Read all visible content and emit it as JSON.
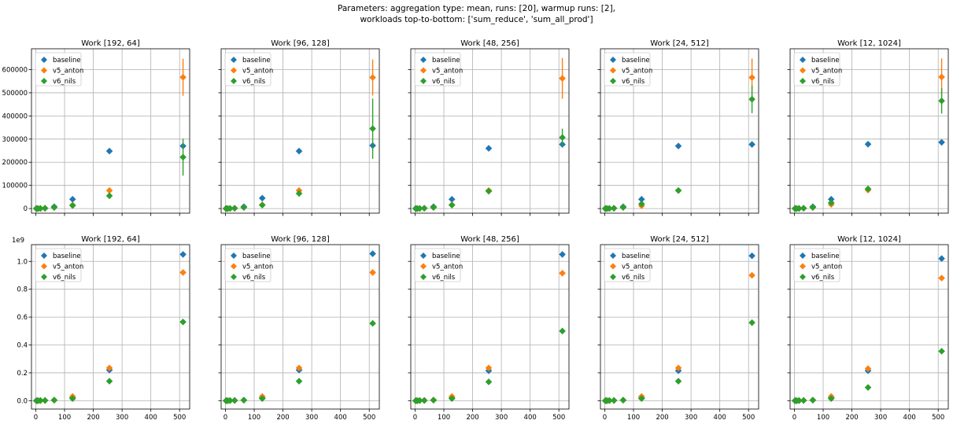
{
  "figure": {
    "suptitle_line1": "Parameters: aggregation type: mean, runs: [20], warmup runs: [2],",
    "suptitle_line2": "workloads top-to-bottom: ['sum_reduce', 'sum_all_prod']"
  },
  "colors": {
    "baseline": "#1f77b4",
    "v5_anton": "#ff7f0e",
    "v6_nils": "#2ca02c",
    "grid": "#b0b0b0"
  },
  "legend_location": "upper-left",
  "rows": [
    {
      "ylim": [
        -20000,
        690000
      ],
      "yticks": [
        0,
        100000,
        200000,
        300000,
        400000,
        500000,
        600000
      ],
      "ytick_labels": [
        "0",
        "100000",
        "200000",
        "300000",
        "400000",
        "500000",
        "600000"
      ],
      "offset_label": "",
      "show_ytick_labels": true,
      "show_xtick_labels": false
    },
    {
      "ylim": [
        -0.06,
        1.12
      ],
      "yticks": [
        0.0,
        0.2,
        0.4,
        0.6,
        0.8,
        1.0
      ],
      "ytick_labels": [
        "0.0",
        "0.2",
        "0.4",
        "0.6",
        "0.8",
        "1.0"
      ],
      "offset_label": "1e9",
      "show_ytick_labels": true,
      "show_xtick_labels": true
    }
  ],
  "xaxis": {
    "xlim": [
      -15,
      535
    ],
    "xticks": [
      0,
      100,
      200,
      300,
      400,
      500
    ],
    "xtick_labels": [
      "0",
      "100",
      "200",
      "300",
      "400",
      "500"
    ]
  },
  "chart_data": [
    {
      "type": "scatter",
      "title": "Work [192, 64]",
      "row": 0,
      "col": 0,
      "grid": true,
      "x": [
        2,
        4,
        8,
        16,
        32,
        64,
        128,
        256,
        512
      ],
      "series": [
        {
          "name": "baseline",
          "values": [
            0,
            0,
            0,
            500,
            1500,
            8000,
            40000,
            248000,
            270000
          ],
          "err": [
            0,
            0,
            0,
            0,
            0,
            0,
            0,
            0,
            0
          ]
        },
        {
          "name": "v5_anton",
          "values": [
            0,
            0,
            0,
            400,
            1200,
            5000,
            15000,
            78000,
            567000
          ],
          "err": [
            0,
            0,
            0,
            0,
            0,
            0,
            0,
            0,
            80000
          ]
        },
        {
          "name": "v6_nils",
          "values": [
            0,
            0,
            0,
            400,
            1200,
            5000,
            13000,
            55000,
            222000
          ],
          "err": [
            0,
            0,
            0,
            0,
            0,
            0,
            0,
            0,
            80000
          ]
        }
      ]
    },
    {
      "type": "scatter",
      "title": "Work [96, 128]",
      "row": 0,
      "col": 1,
      "grid": true,
      "x": [
        2,
        4,
        8,
        16,
        32,
        64,
        128,
        256,
        512
      ],
      "series": [
        {
          "name": "baseline",
          "values": [
            0,
            0,
            0,
            500,
            1500,
            8000,
            45000,
            248000,
            272000
          ],
          "err": [
            0,
            0,
            0,
            0,
            0,
            0,
            0,
            0,
            0
          ]
        },
        {
          "name": "v5_anton",
          "values": [
            0,
            0,
            0,
            400,
            1200,
            5000,
            16000,
            78000,
            566000
          ],
          "err": [
            0,
            0,
            0,
            0,
            0,
            0,
            0,
            0,
            78000
          ]
        },
        {
          "name": "v6_nils",
          "values": [
            0,
            0,
            0,
            400,
            1200,
            5000,
            15000,
            65000,
            345000
          ],
          "err": [
            0,
            0,
            0,
            0,
            0,
            0,
            0,
            0,
            130000
          ]
        }
      ]
    },
    {
      "type": "scatter",
      "title": "Work [48, 256]",
      "row": 0,
      "col": 2,
      "grid": true,
      "x": [
        2,
        4,
        8,
        16,
        32,
        64,
        128,
        256,
        512
      ],
      "series": [
        {
          "name": "baseline",
          "values": [
            0,
            0,
            0,
            500,
            1500,
            8000,
            40000,
            260000,
            277000
          ],
          "err": [
            0,
            0,
            0,
            0,
            0,
            0,
            0,
            0,
            0
          ]
        },
        {
          "name": "v5_anton",
          "values": [
            0,
            0,
            0,
            400,
            1200,
            5000,
            16000,
            78000,
            562000
          ],
          "err": [
            0,
            0,
            0,
            0,
            0,
            0,
            0,
            0,
            88000
          ]
        },
        {
          "name": "v6_nils",
          "values": [
            0,
            0,
            0,
            400,
            1200,
            5000,
            15000,
            75000,
            307000
          ],
          "err": [
            0,
            0,
            0,
            0,
            0,
            0,
            0,
            0,
            38000
          ]
        }
      ]
    },
    {
      "type": "scatter",
      "title": "Work [24, 512]",
      "row": 0,
      "col": 3,
      "grid": true,
      "x": [
        2,
        4,
        8,
        16,
        32,
        64,
        128,
        256,
        512
      ],
      "series": [
        {
          "name": "baseline",
          "values": [
            0,
            0,
            0,
            500,
            1500,
            8000,
            40000,
            270000,
            277000
          ],
          "err": [
            0,
            0,
            0,
            0,
            0,
            0,
            0,
            12000,
            0
          ]
        },
        {
          "name": "v5_anton",
          "values": [
            0,
            0,
            0,
            400,
            1200,
            5000,
            12000,
            78000,
            566000
          ],
          "err": [
            0,
            0,
            0,
            0,
            0,
            0,
            0,
            0,
            82000
          ]
        },
        {
          "name": "v6_nils",
          "values": [
            0,
            0,
            0,
            400,
            1200,
            5000,
            20000,
            78000,
            472000
          ],
          "err": [
            0,
            0,
            0,
            0,
            0,
            0,
            0,
            0,
            60000
          ]
        }
      ]
    },
    {
      "type": "scatter",
      "title": "Work [12, 1024]",
      "row": 0,
      "col": 4,
      "grid": true,
      "x": [
        2,
        4,
        8,
        16,
        32,
        64,
        128,
        256,
        512
      ],
      "series": [
        {
          "name": "baseline",
          "values": [
            0,
            0,
            0,
            500,
            1500,
            8000,
            40000,
            278000,
            286000
          ],
          "err": [
            0,
            0,
            0,
            0,
            0,
            0,
            0,
            0,
            0
          ]
        },
        {
          "name": "v5_anton",
          "values": [
            0,
            0,
            0,
            400,
            1200,
            5000,
            18000,
            80000,
            568000
          ],
          "err": [
            0,
            0,
            0,
            0,
            0,
            0,
            0,
            0,
            80000
          ]
        },
        {
          "name": "v6_nils",
          "values": [
            0,
            0,
            0,
            400,
            1200,
            5000,
            25000,
            85000,
            465000
          ],
          "err": [
            0,
            0,
            0,
            0,
            0,
            0,
            0,
            0,
            55000
          ]
        }
      ]
    },
    {
      "type": "scatter",
      "title": "Work [192, 64]",
      "row": 1,
      "col": 0,
      "grid": true,
      "x": [
        2,
        4,
        8,
        16,
        32,
        64,
        128,
        256,
        512
      ],
      "series": [
        {
          "name": "baseline",
          "values": [
            0,
            0,
            0,
            0.001,
            0.002,
            0.004,
            0.02,
            0.22,
            1.05
          ],
          "err": [
            0,
            0,
            0,
            0,
            0,
            0,
            0,
            0,
            0
          ]
        },
        {
          "name": "v5_anton",
          "values": [
            0,
            0,
            0,
            0.001,
            0.002,
            0.004,
            0.03,
            0.235,
            0.92
          ],
          "err": [
            0,
            0,
            0,
            0,
            0,
            0,
            0,
            0,
            0
          ]
        },
        {
          "name": "v6_nils",
          "values": [
            0,
            0,
            0,
            0.001,
            0.002,
            0.004,
            0.015,
            0.14,
            0.565
          ],
          "err": [
            0,
            0,
            0,
            0,
            0,
            0,
            0,
            0,
            0
          ]
        }
      ]
    },
    {
      "type": "scatter",
      "title": "Work [96, 128]",
      "row": 1,
      "col": 1,
      "grid": true,
      "x": [
        2,
        4,
        8,
        16,
        32,
        64,
        128,
        256,
        512
      ],
      "series": [
        {
          "name": "baseline",
          "values": [
            0,
            0,
            0,
            0.001,
            0.002,
            0.004,
            0.02,
            0.22,
            1.055
          ],
          "err": [
            0,
            0,
            0,
            0,
            0,
            0,
            0,
            0,
            0
          ]
        },
        {
          "name": "v5_anton",
          "values": [
            0,
            0,
            0,
            0.001,
            0.002,
            0.004,
            0.03,
            0.235,
            0.92
          ],
          "err": [
            0,
            0,
            0,
            0,
            0,
            0,
            0,
            0,
            0
          ]
        },
        {
          "name": "v6_nils",
          "values": [
            0,
            0,
            0,
            0.001,
            0.002,
            0.004,
            0.015,
            0.14,
            0.555
          ],
          "err": [
            0,
            0,
            0,
            0,
            0,
            0,
            0,
            0,
            0
          ]
        }
      ]
    },
    {
      "type": "scatter",
      "title": "Work [48, 256]",
      "row": 1,
      "col": 2,
      "grid": true,
      "x": [
        2,
        4,
        8,
        16,
        32,
        64,
        128,
        256,
        512
      ],
      "series": [
        {
          "name": "baseline",
          "values": [
            0,
            0,
            0,
            0.001,
            0.002,
            0.004,
            0.02,
            0.215,
            1.05
          ],
          "err": [
            0,
            0,
            0,
            0,
            0,
            0,
            0,
            0,
            0
          ]
        },
        {
          "name": "v5_anton",
          "values": [
            0,
            0,
            0,
            0.001,
            0.002,
            0.004,
            0.03,
            0.235,
            0.915
          ],
          "err": [
            0,
            0,
            0,
            0,
            0,
            0,
            0,
            0,
            0
          ]
        },
        {
          "name": "v6_nils",
          "values": [
            0,
            0,
            0,
            0.001,
            0.002,
            0.004,
            0.015,
            0.135,
            0.5
          ],
          "err": [
            0,
            0,
            0,
            0,
            0,
            0,
            0,
            0,
            0
          ]
        }
      ]
    },
    {
      "type": "scatter",
      "title": "Work [24, 512]",
      "row": 1,
      "col": 3,
      "grid": true,
      "x": [
        2,
        4,
        8,
        16,
        32,
        64,
        128,
        256,
        512
      ],
      "series": [
        {
          "name": "baseline",
          "values": [
            0,
            0,
            0,
            0.001,
            0.002,
            0.004,
            0.02,
            0.215,
            1.04
          ],
          "err": [
            0,
            0,
            0,
            0,
            0,
            0,
            0,
            0,
            0
          ]
        },
        {
          "name": "v5_anton",
          "values": [
            0,
            0,
            0,
            0.001,
            0.002,
            0.004,
            0.03,
            0.235,
            0.9
          ],
          "err": [
            0,
            0,
            0,
            0,
            0,
            0,
            0,
            0,
            0
          ]
        },
        {
          "name": "v6_nils",
          "values": [
            0,
            0,
            0,
            0.001,
            0.002,
            0.004,
            0.015,
            0.14,
            0.56
          ],
          "err": [
            0,
            0,
            0,
            0,
            0,
            0,
            0,
            0,
            0
          ]
        }
      ]
    },
    {
      "type": "scatter",
      "title": "Work [12, 1024]",
      "row": 1,
      "col": 4,
      "grid": true,
      "x": [
        2,
        4,
        8,
        16,
        32,
        64,
        128,
        256,
        512
      ],
      "series": [
        {
          "name": "baseline",
          "values": [
            0,
            0,
            0,
            0.001,
            0.002,
            0.004,
            0.02,
            0.215,
            1.02
          ],
          "err": [
            0,
            0,
            0,
            0,
            0,
            0,
            0,
            0,
            0
          ]
        },
        {
          "name": "v5_anton",
          "values": [
            0,
            0,
            0,
            0.001,
            0.002,
            0.004,
            0.03,
            0.23,
            0.88
          ],
          "err": [
            0,
            0,
            0,
            0,
            0,
            0,
            0,
            0,
            0
          ]
        },
        {
          "name": "v6_nils",
          "values": [
            0,
            0,
            0,
            0.001,
            0.002,
            0.004,
            0.015,
            0.095,
            0.355
          ],
          "err": [
            0,
            0,
            0,
            0,
            0,
            0,
            0,
            0,
            0
          ]
        }
      ]
    }
  ]
}
